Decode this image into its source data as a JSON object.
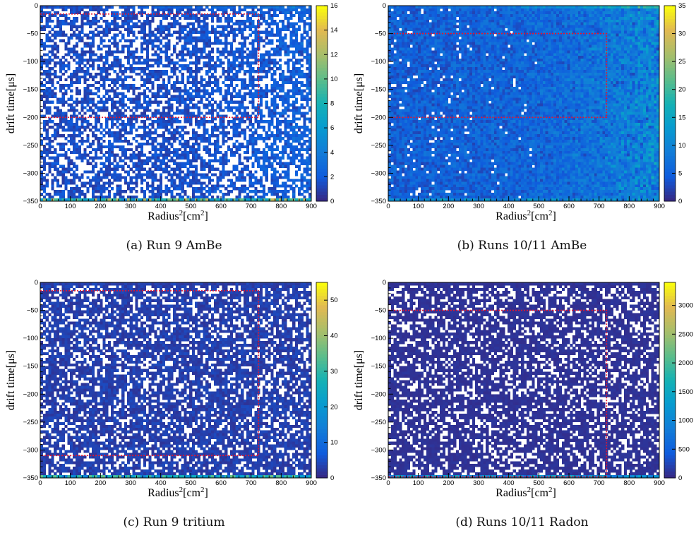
{
  "chart_data": [
    {
      "type": "heatmap",
      "caption": "(a) Run 9 AmBe",
      "xlabel": "Radius",
      "xlabel_sup": "2",
      "xlabel_unit": "[cm",
      "xlabel_unit_sup": "2",
      "xlabel_close": "]",
      "ylabel": "drift time[μs]",
      "xlim": [
        0,
        900
      ],
      "ylim": [
        -350,
        0
      ],
      "x_ticks": [
        "0",
        "100",
        "200",
        "300",
        "400",
        "500",
        "600",
        "700",
        "800",
        "900"
      ],
      "y_ticks": [
        "−50",
        "−100",
        "−150",
        "−200",
        "−250",
        "−300",
        "−350"
      ],
      "colorbar_max": 16,
      "colorbar_ticks": [
        "2",
        "4",
        "6",
        "8",
        "10",
        "12",
        "14",
        "16"
      ],
      "cut_box": {
        "r2_max": 725,
        "t_top": -15,
        "t_bottom": -200
      },
      "occupancy": 0.58,
      "mean_level": 0.08,
      "right_ramp": 0.12,
      "bottom_row_level": 0.55
    },
    {
      "type": "heatmap",
      "caption": "(b) Runs 10/11 AmBe",
      "xlabel": "Radius",
      "xlabel_sup": "2",
      "xlabel_unit": "[cm",
      "xlabel_unit_sup": "2",
      "xlabel_close": "]",
      "ylabel": "drift time[μs]",
      "xlim": [
        0,
        900
      ],
      "ylim": [
        -350,
        0
      ],
      "x_ticks": [
        "0",
        "100",
        "200",
        "300",
        "400",
        "500",
        "600",
        "700",
        "800",
        "900"
      ],
      "y_ticks": [
        "−50",
        "−100",
        "−150",
        "−200",
        "−250",
        "−300",
        "−350"
      ],
      "colorbar_max": 35,
      "colorbar_ticks": [
        "5",
        "10",
        "15",
        "20",
        "25",
        "30",
        "35"
      ],
      "cut_box": {
        "r2_max": 725,
        "t_top": -50,
        "t_bottom": -200
      },
      "occupancy": 0.93,
      "mean_level": 0.14,
      "right_ramp": 0.28,
      "bottom_row_level": 0.3
    },
    {
      "type": "heatmap",
      "caption": "(c) Run 9 tritium",
      "xlabel": "Radius",
      "xlabel_sup": "2",
      "xlabel_unit": "[cm",
      "xlabel_unit_sup": "2",
      "xlabel_close": "]",
      "ylabel": "drift time[μs]",
      "xlim": [
        0,
        900
      ],
      "ylim": [
        -350,
        0
      ],
      "x_ticks": [
        "0",
        "100",
        "200",
        "300",
        "400",
        "500",
        "600",
        "700",
        "800",
        "900"
      ],
      "y_ticks": [
        "−50",
        "−100",
        "−150",
        "−200",
        "−250",
        "−300",
        "−350"
      ],
      "colorbar_max": 55,
      "colorbar_ticks": [
        "10",
        "20",
        "30",
        "40",
        "50"
      ],
      "cut_box": {
        "r2_max": 725,
        "t_top": -15,
        "t_bottom": -310
      },
      "occupancy": 0.72,
      "mean_level": 0.05,
      "right_ramp": 0.0,
      "bottom_row_level": 0.45
    },
    {
      "type": "heatmap",
      "caption": "(d) Runs 10/11 Radon",
      "xlabel": "Radius",
      "xlabel_sup": "2",
      "xlabel_unit": "[cm",
      "xlabel_unit_sup": "2",
      "xlabel_close": "]",
      "ylabel": "drift time[μs]",
      "xlim": [
        0,
        900
      ],
      "ylim": [
        -350,
        0
      ],
      "x_ticks": [
        "0",
        "100",
        "200",
        "300",
        "400",
        "500",
        "600",
        "700",
        "800",
        "900"
      ],
      "y_ticks": [
        "−50",
        "−100",
        "−150",
        "−200",
        "−250",
        "−300",
        "−350"
      ],
      "colorbar_max": 3400,
      "colorbar_ticks": [
        "500",
        "1000",
        "1500",
        "2000",
        "2500",
        "3000"
      ],
      "cut_box": {
        "r2_max": 725,
        "t_top": -50,
        "t_bottom": -348
      },
      "occupancy": 0.72,
      "mean_level": 0.02,
      "right_ramp": 0.0,
      "bottom_row_level": 0.3
    }
  ]
}
